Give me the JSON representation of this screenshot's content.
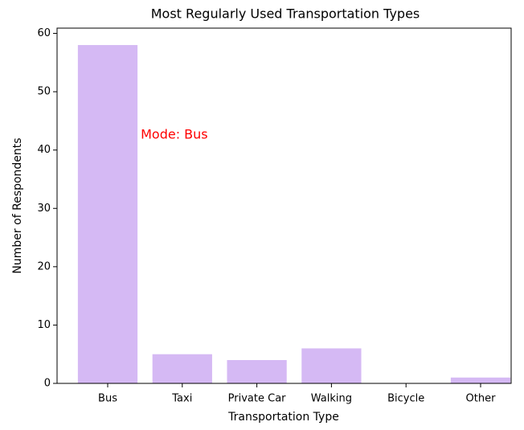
{
  "chart_data": {
    "type": "bar",
    "title": "Most Regularly Used Transportation Types",
    "x_label": "Transportation Type",
    "y_label": "Number of Respondents",
    "categories": [
      "Bus",
      "Taxi",
      "Private Car",
      "Walking",
      "Bicycle",
      "Other"
    ],
    "values": [
      58,
      5,
      4,
      6,
      0,
      1
    ],
    "color": "#d5b9f4",
    "ylim": [
      0,
      60.9
    ],
    "yticks": [
      0,
      10,
      20,
      30,
      40,
      50,
      60
    ],
    "grid": false,
    "annotation": {
      "text": "Mode: Bus",
      "color": "#ff0000"
    }
  }
}
